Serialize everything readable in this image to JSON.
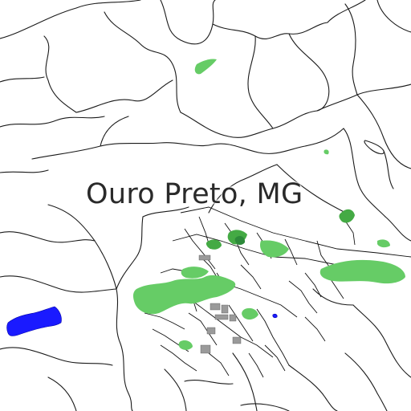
{
  "map": {
    "place_label": "Ouro Preto, MG",
    "colors": {
      "background": "#ffffff",
      "road": "#1a1a1a",
      "park_light": "#66cc66",
      "park_mid": "#44aa44",
      "park_dark": "#2d8a3a",
      "water": "#1a1aff",
      "building": "#9a9a9a",
      "label_text": "#2a2a2a"
    },
    "features": {
      "layers": [
        "roads",
        "green-areas",
        "water-body",
        "buildings"
      ]
    }
  }
}
